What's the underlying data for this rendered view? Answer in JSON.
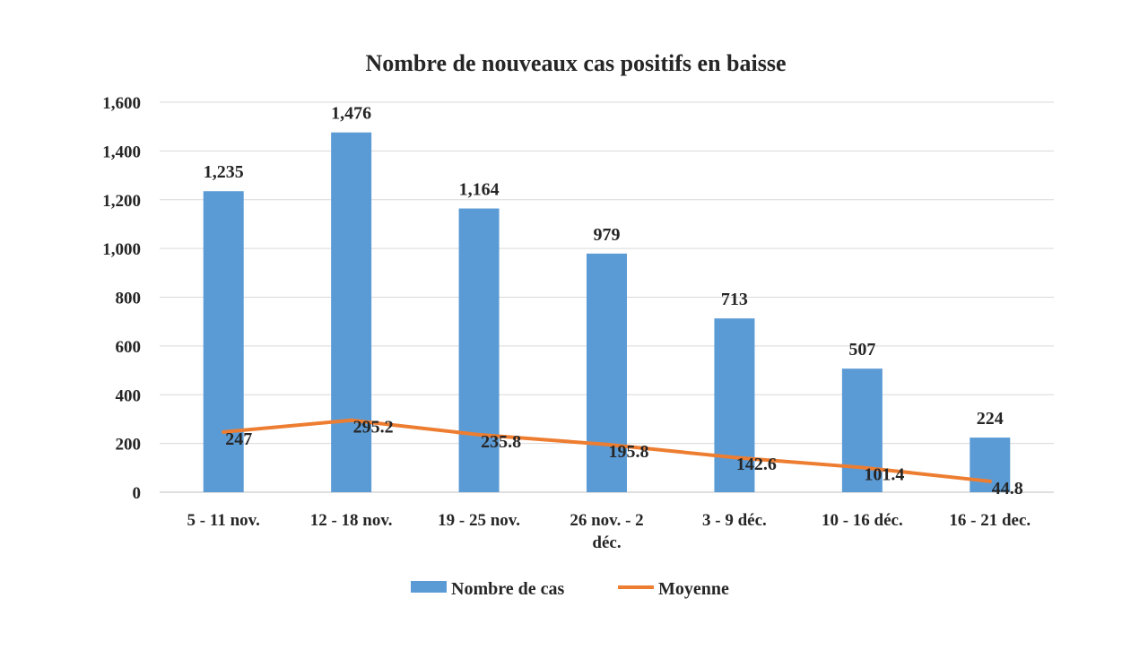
{
  "chart_data": {
    "type": "bar",
    "title": "Nombre de nouveaux cas positifs en baisse",
    "xlabel": "",
    "ylabel": "",
    "ylim": [
      0,
      1600
    ],
    "yticks": [
      0,
      200,
      400,
      600,
      800,
      1000,
      1200,
      1400,
      1600
    ],
    "ytick_labels": [
      "0",
      "200",
      "400",
      "600",
      "800",
      "1,000",
      "1,200",
      "1,400",
      "1,600"
    ],
    "grid": true,
    "legend_position": "bottom",
    "categories": [
      [
        "5 - 11 nov."
      ],
      [
        "12 - 18 nov."
      ],
      [
        "19 - 25 nov."
      ],
      [
        "26 nov. - 2",
        "déc."
      ],
      [
        "3 - 9 déc."
      ],
      [
        "10 - 16 déc."
      ],
      [
        "16 - 21 dec."
      ]
    ],
    "series": [
      {
        "name": "Nombre de cas",
        "kind": "bar",
        "color": "#5B9BD5",
        "values": [
          1235,
          1476,
          1164,
          979,
          713,
          507,
          224
        ],
        "labels": [
          "1,235",
          "1,476",
          "1,164",
          "979",
          "713",
          "507",
          "224"
        ]
      },
      {
        "name": "Moyenne",
        "kind": "line",
        "color": "#ED7D31",
        "values": [
          247,
          295.2,
          235.8,
          195.8,
          142.6,
          101.4,
          44.8
        ],
        "labels": [
          "247",
          "295.2",
          "235.8",
          "195.8",
          "142.6",
          "101.4",
          "44.8"
        ]
      }
    ]
  }
}
